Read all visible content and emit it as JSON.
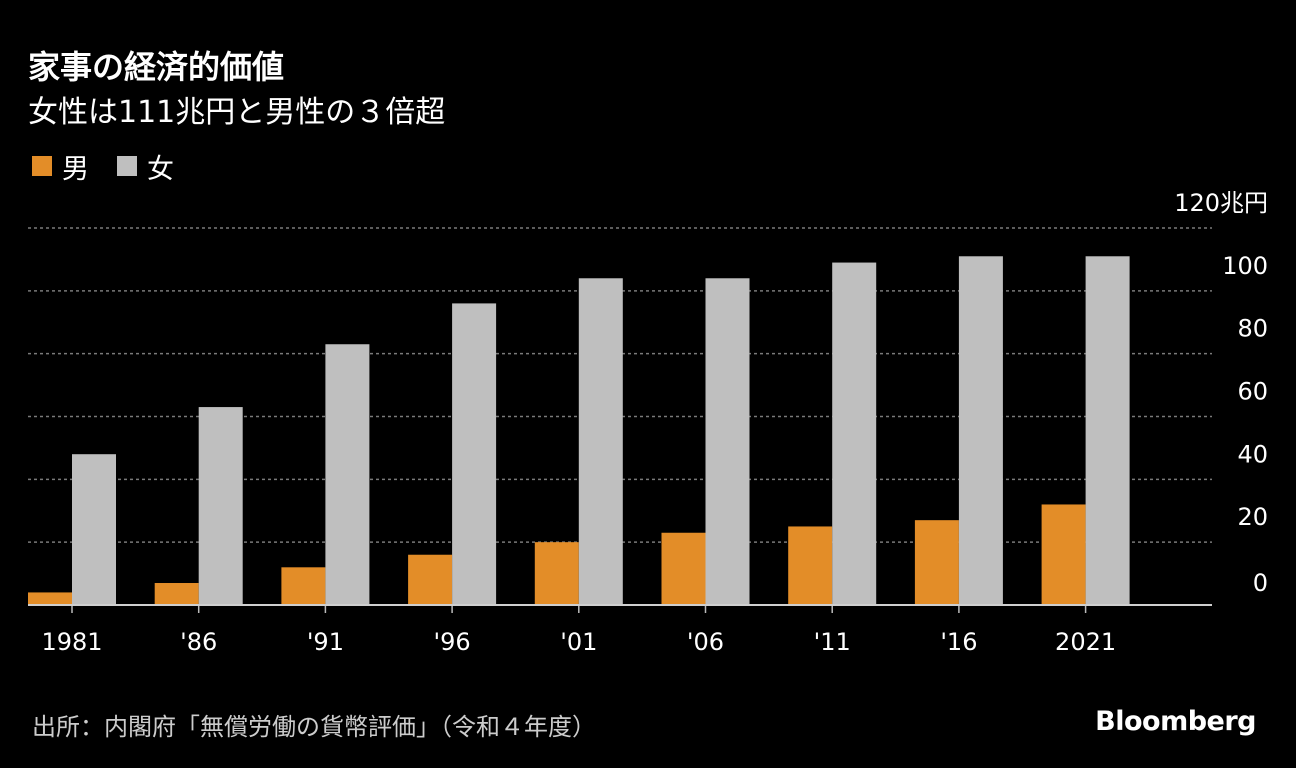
{
  "title": "家事の経済的価値",
  "subtitle": "女性は111兆円と男性の３倍超",
  "legend": [
    {
      "label": "男",
      "color": "#e38d28"
    },
    {
      "label": "女",
      "color": "#bfbfbf"
    }
  ],
  "source": "出所：内閣府「無償労働の貨幣評価」（令和４年度）",
  "brand": "Bloomberg",
  "chart_data": {
    "type": "bar",
    "title": "家事の経済的価値",
    "subtitle": "女性は111兆円と男性の３倍超",
    "categories": [
      "1981",
      "'86",
      "'91",
      "'96",
      "'01",
      "'06",
      "'11",
      "'16",
      "2021"
    ],
    "series": [
      {
        "name": "男",
        "color": "#e38d28",
        "values": [
          4,
          7,
          12,
          16,
          20,
          23,
          25,
          27,
          32
        ]
      },
      {
        "name": "女",
        "color": "#bfbfbf",
        "values": [
          48,
          63,
          83,
          96,
          104,
          104,
          109,
          111,
          111
        ]
      }
    ],
    "ylim": [
      0,
      120
    ],
    "yticks": [
      0,
      20,
      40,
      60,
      80,
      100,
      120
    ],
    "ytick_labels": [
      "0",
      "20",
      "40",
      "60",
      "80",
      "100",
      "120兆円"
    ],
    "yaxis_position": "right",
    "grid": true,
    "legend_position": "top-left"
  }
}
